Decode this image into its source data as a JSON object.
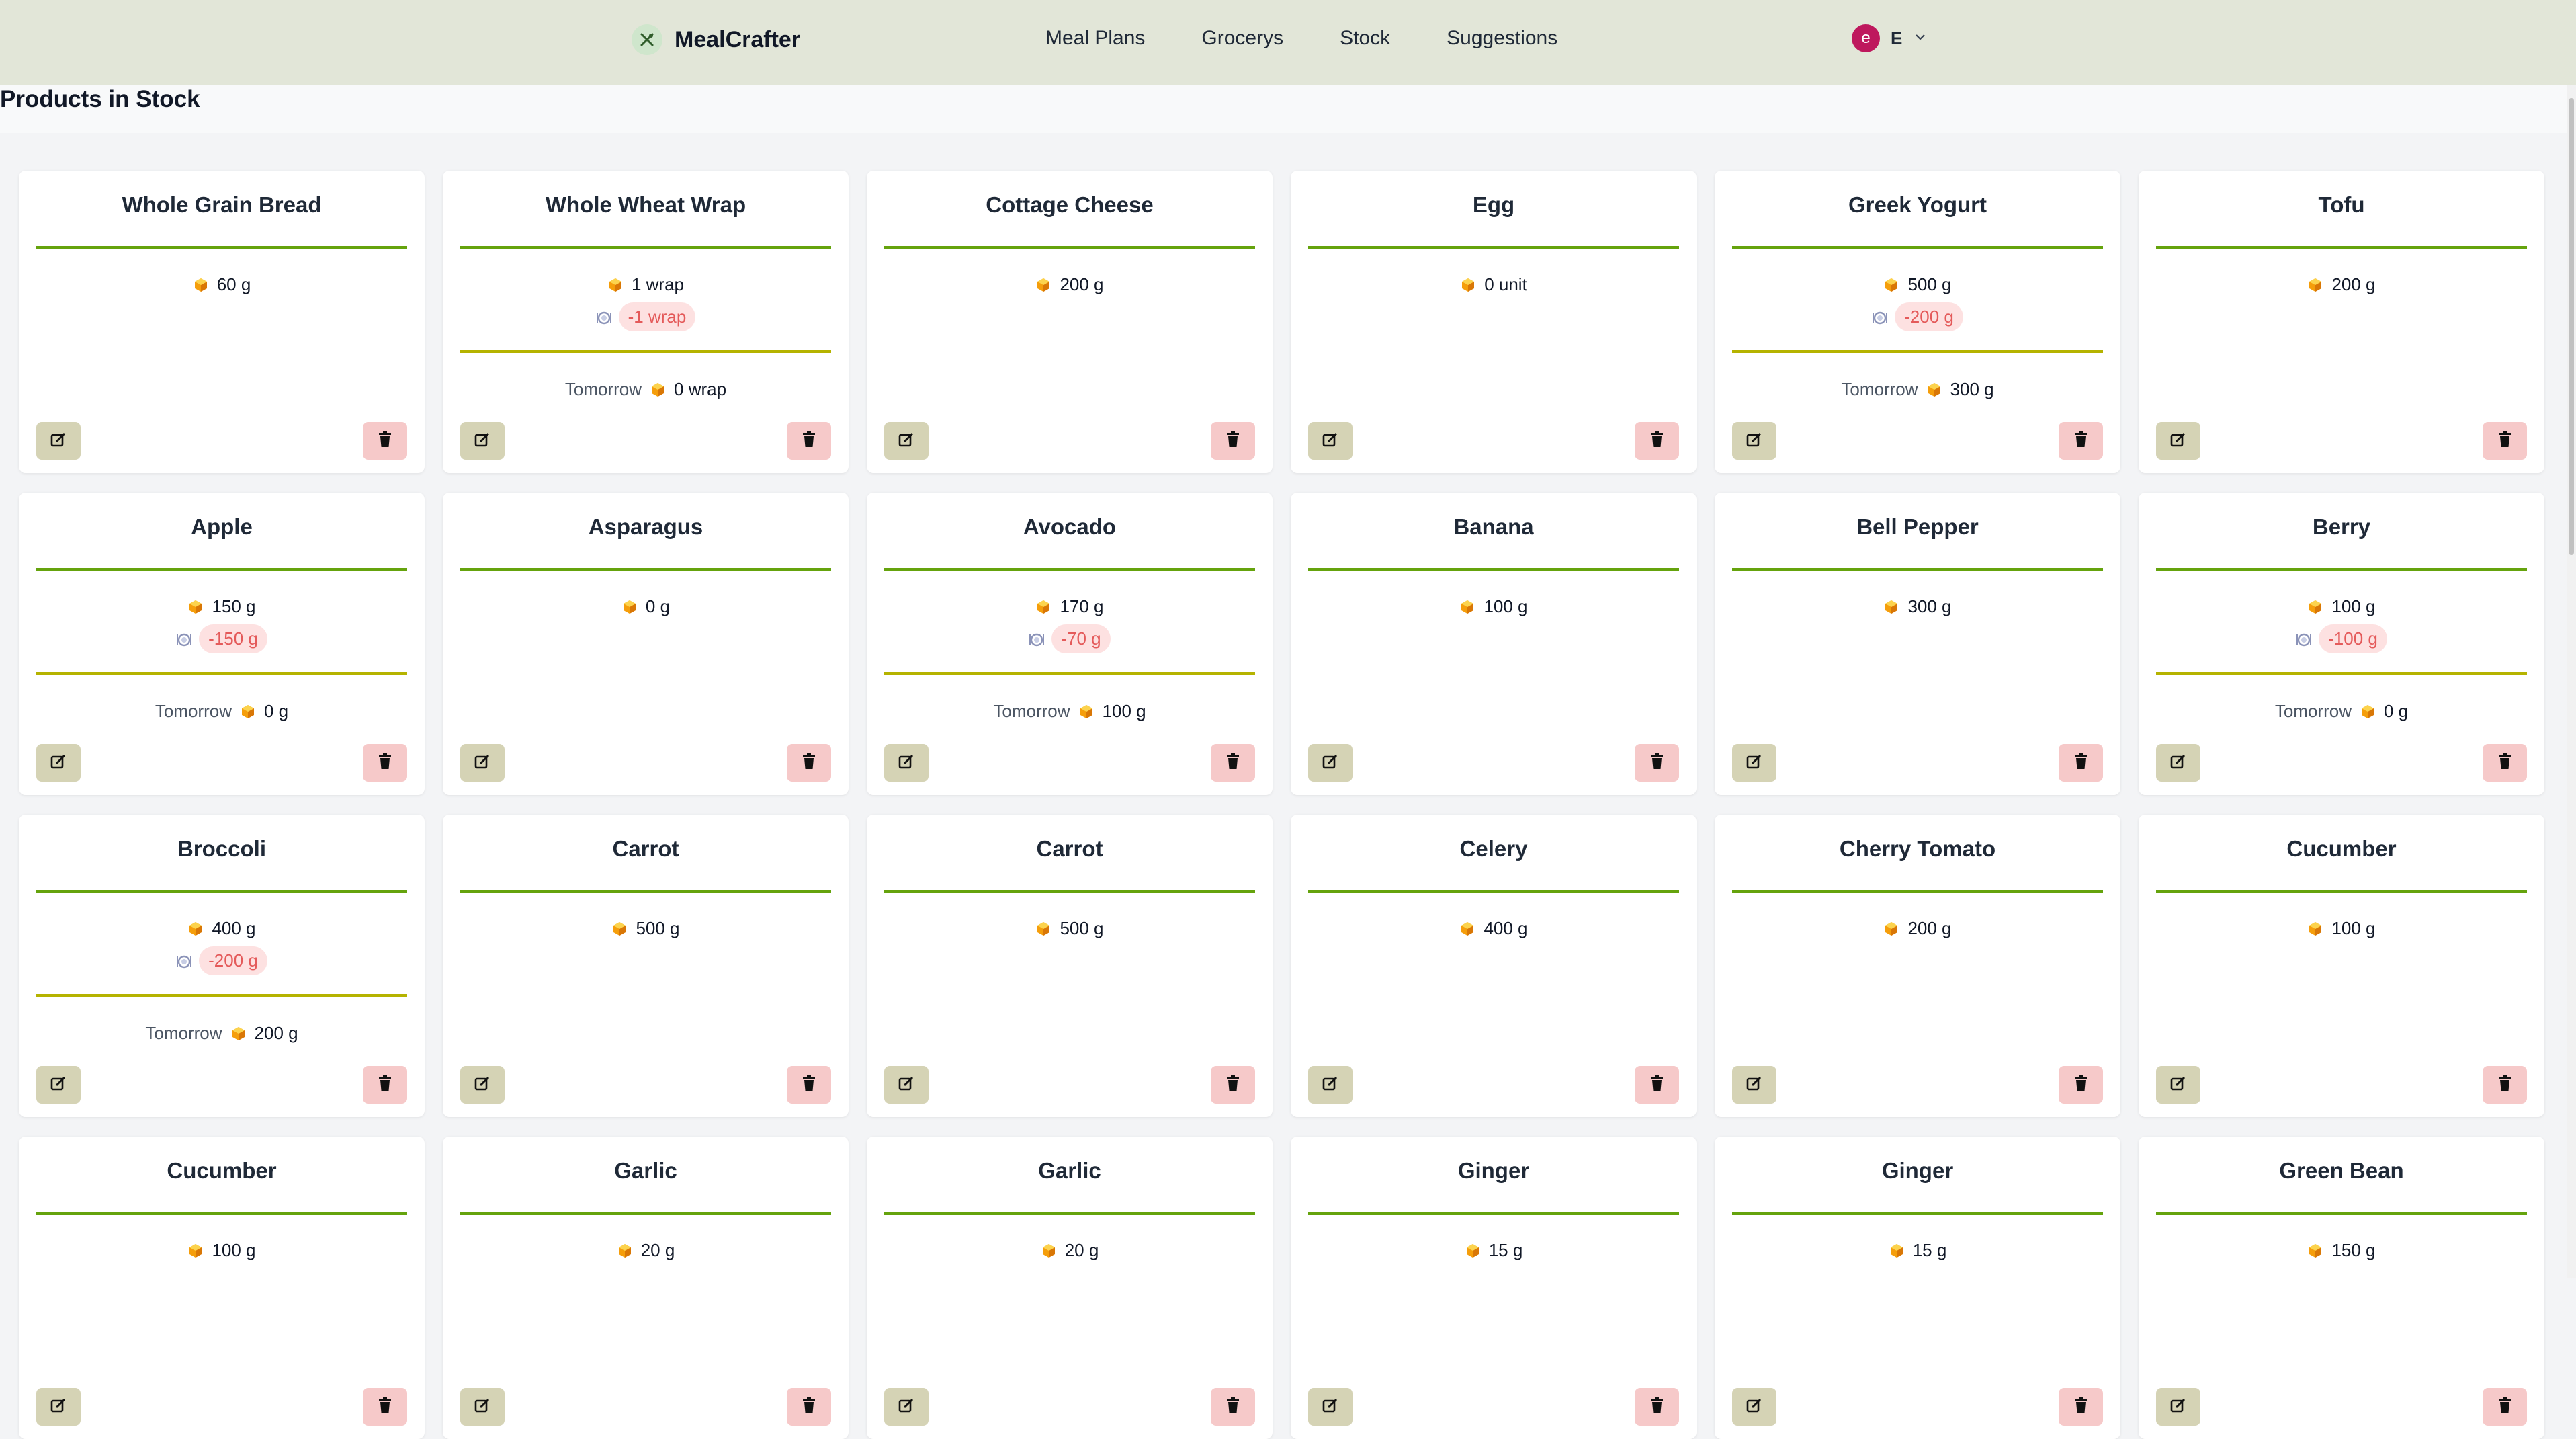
{
  "app": {
    "name": "MealCrafter"
  },
  "nav": {
    "links": [
      "Meal Plans",
      "Grocerys",
      "Stock",
      "Suggestions"
    ]
  },
  "user": {
    "avatar_letter": "e",
    "initial": "E"
  },
  "page": {
    "title": "Products in Stock"
  },
  "labels": {
    "tomorrow": "Tomorrow"
  },
  "colors": {
    "navbar_bg": "#e2e6d8",
    "divider_green": "#65a30d",
    "divider_olive": "#b5b300",
    "badge_bg": "#fde1e1",
    "badge_text": "#e45a5a",
    "edit_btn": "#d5d3b5",
    "delete_btn": "#f6c9c9",
    "avatar": "#be185d"
  },
  "icons": {
    "stock": "box-icon",
    "planned": "plate-icon",
    "edit": "edit-icon",
    "delete": "trash-icon"
  },
  "products": [
    {
      "name": "Whole Grain Bread",
      "quantity": "60 g"
    },
    {
      "name": "Whole Wheat Wrap",
      "quantity": "1 wrap",
      "planned": "-1 wrap",
      "tomorrow": "0 wrap"
    },
    {
      "name": "Cottage Cheese",
      "quantity": "200 g"
    },
    {
      "name": "Egg",
      "quantity": "0 unit"
    },
    {
      "name": "Greek Yogurt",
      "quantity": "500 g",
      "planned": "-200 g",
      "tomorrow": "300 g"
    },
    {
      "name": "Tofu",
      "quantity": "200 g"
    },
    {
      "name": "Apple",
      "quantity": "150 g",
      "planned": "-150 g",
      "tomorrow": "0 g"
    },
    {
      "name": "Asparagus",
      "quantity": "0 g"
    },
    {
      "name": "Avocado",
      "quantity": "170 g",
      "planned": "-70 g",
      "tomorrow": "100 g"
    },
    {
      "name": "Banana",
      "quantity": "100 g"
    },
    {
      "name": "Bell Pepper",
      "quantity": "300 g"
    },
    {
      "name": "Berry",
      "quantity": "100 g",
      "planned": "-100 g",
      "tomorrow": "0 g"
    },
    {
      "name": "Broccoli",
      "quantity": "400 g",
      "planned": "-200 g",
      "tomorrow": "200 g"
    },
    {
      "name": "Carrot",
      "quantity": "500 g"
    },
    {
      "name": "Carrot",
      "quantity": "500 g"
    },
    {
      "name": "Celery",
      "quantity": "400 g"
    },
    {
      "name": "Cherry Tomato",
      "quantity": "200 g"
    },
    {
      "name": "Cucumber",
      "quantity": "100 g"
    },
    {
      "name": "Cucumber",
      "quantity": "100 g"
    },
    {
      "name": "Garlic",
      "quantity": "20 g"
    },
    {
      "name": "Garlic",
      "quantity": "20 g"
    },
    {
      "name": "Ginger",
      "quantity": "15 g"
    },
    {
      "name": "Ginger",
      "quantity": "15 g"
    },
    {
      "name": "Green Bean",
      "quantity": "150 g"
    }
  ]
}
